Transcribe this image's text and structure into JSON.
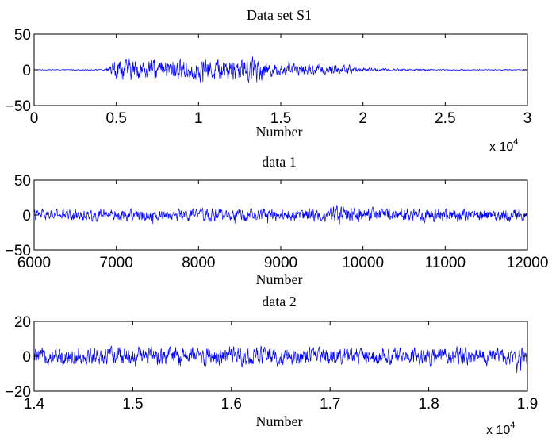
{
  "colors": {
    "line": "#0000ff",
    "axes": "#000000",
    "background": "#ffffff"
  },
  "chart_data": [
    {
      "type": "line",
      "title": "Data set S1",
      "xlabel": "Number",
      "ylabel": "",
      "x_multiplier_label": "x 10",
      "x_multiplier_exp": "4",
      "xlim": [
        0,
        3
      ],
      "ylim": [
        -50,
        50
      ],
      "xticks": [
        0,
        0.5,
        1,
        1.5,
        2,
        2.5,
        3
      ],
      "xtick_labels": [
        "0",
        "0.5",
        "1",
        "1.5",
        "2",
        "2.5",
        "3"
      ],
      "yticks": [
        -50,
        0,
        50
      ],
      "ytick_labels": [
        "−50",
        "0",
        "50"
      ],
      "series": [
        {
          "name": "S1",
          "envelope": {
            "x": [
              0,
              0.4,
              0.44,
              0.46,
              0.5,
              0.7,
              1.0,
              1.2,
              1.35,
              1.45,
              1.7,
              1.9,
              1.95,
              1.96,
              2.1,
              2.5,
              3.0
            ],
            "amplitude": [
              0.5,
              0.8,
              2,
              8,
              16,
              14,
              15,
              16,
              19,
              9,
              7,
              8,
              7,
              3,
              2,
              0.8,
              0.6
            ],
            "offset": [
              0,
              0,
              -1,
              0,
              0,
              0,
              0,
              1,
              2,
              0,
              0,
              0,
              0,
              0,
              0,
              0,
              0
            ]
          },
          "samples": 1400
        }
      ],
      "grid": false
    },
    {
      "type": "line",
      "title": "data 1",
      "xlabel": "Number",
      "ylabel": "",
      "x_multiplier_label": "",
      "x_multiplier_exp": "",
      "xlim": [
        6000,
        12000
      ],
      "ylim": [
        -50,
        50
      ],
      "xticks": [
        6000,
        7000,
        8000,
        9000,
        10000,
        11000,
        12000
      ],
      "xtick_labels": [
        "6000",
        "7000",
        "8000",
        "9000",
        "10000",
        "11000",
        "12000"
      ],
      "yticks": [
        -50,
        0,
        50
      ],
      "ytick_labels": [
        "−50",
        "0",
        "50"
      ],
      "series": [
        {
          "name": "data 1",
          "envelope": {
            "x": [
              6000,
              9000,
              9600,
              9700,
              10000,
              12000
            ],
            "amplitude": [
              8,
              9,
              10,
              14,
              10,
              9
            ],
            "offset": [
              0,
              0,
              0,
              2,
              0,
              0
            ]
          },
          "samples": 1400
        }
      ],
      "grid": false
    },
    {
      "type": "line",
      "title": "data 2",
      "xlabel": "Number",
      "ylabel": "",
      "x_multiplier_label": "x 10",
      "x_multiplier_exp": "4",
      "xlim": [
        1.4,
        1.9
      ],
      "ylim": [
        -20,
        20
      ],
      "xticks": [
        1.4,
        1.5,
        1.6,
        1.7,
        1.8,
        1.9
      ],
      "xtick_labels": [
        "1.4",
        "1.5",
        "1.6",
        "1.7",
        "1.8",
        "1.9"
      ],
      "yticks": [
        -20,
        0,
        20
      ],
      "ytick_labels": [
        "−20",
        "0",
        "20"
      ],
      "series": [
        {
          "name": "data 2",
          "envelope": {
            "x": [
              1.4,
              1.5,
              1.6,
              1.7,
              1.8,
              1.9
            ],
            "amplitude": [
              5,
              5.5,
              5.5,
              5,
              5,
              5
            ],
            "offset": [
              0,
              0,
              0,
              0,
              0,
              0
            ]
          },
          "samples": 1400
        }
      ],
      "grid": false
    }
  ]
}
